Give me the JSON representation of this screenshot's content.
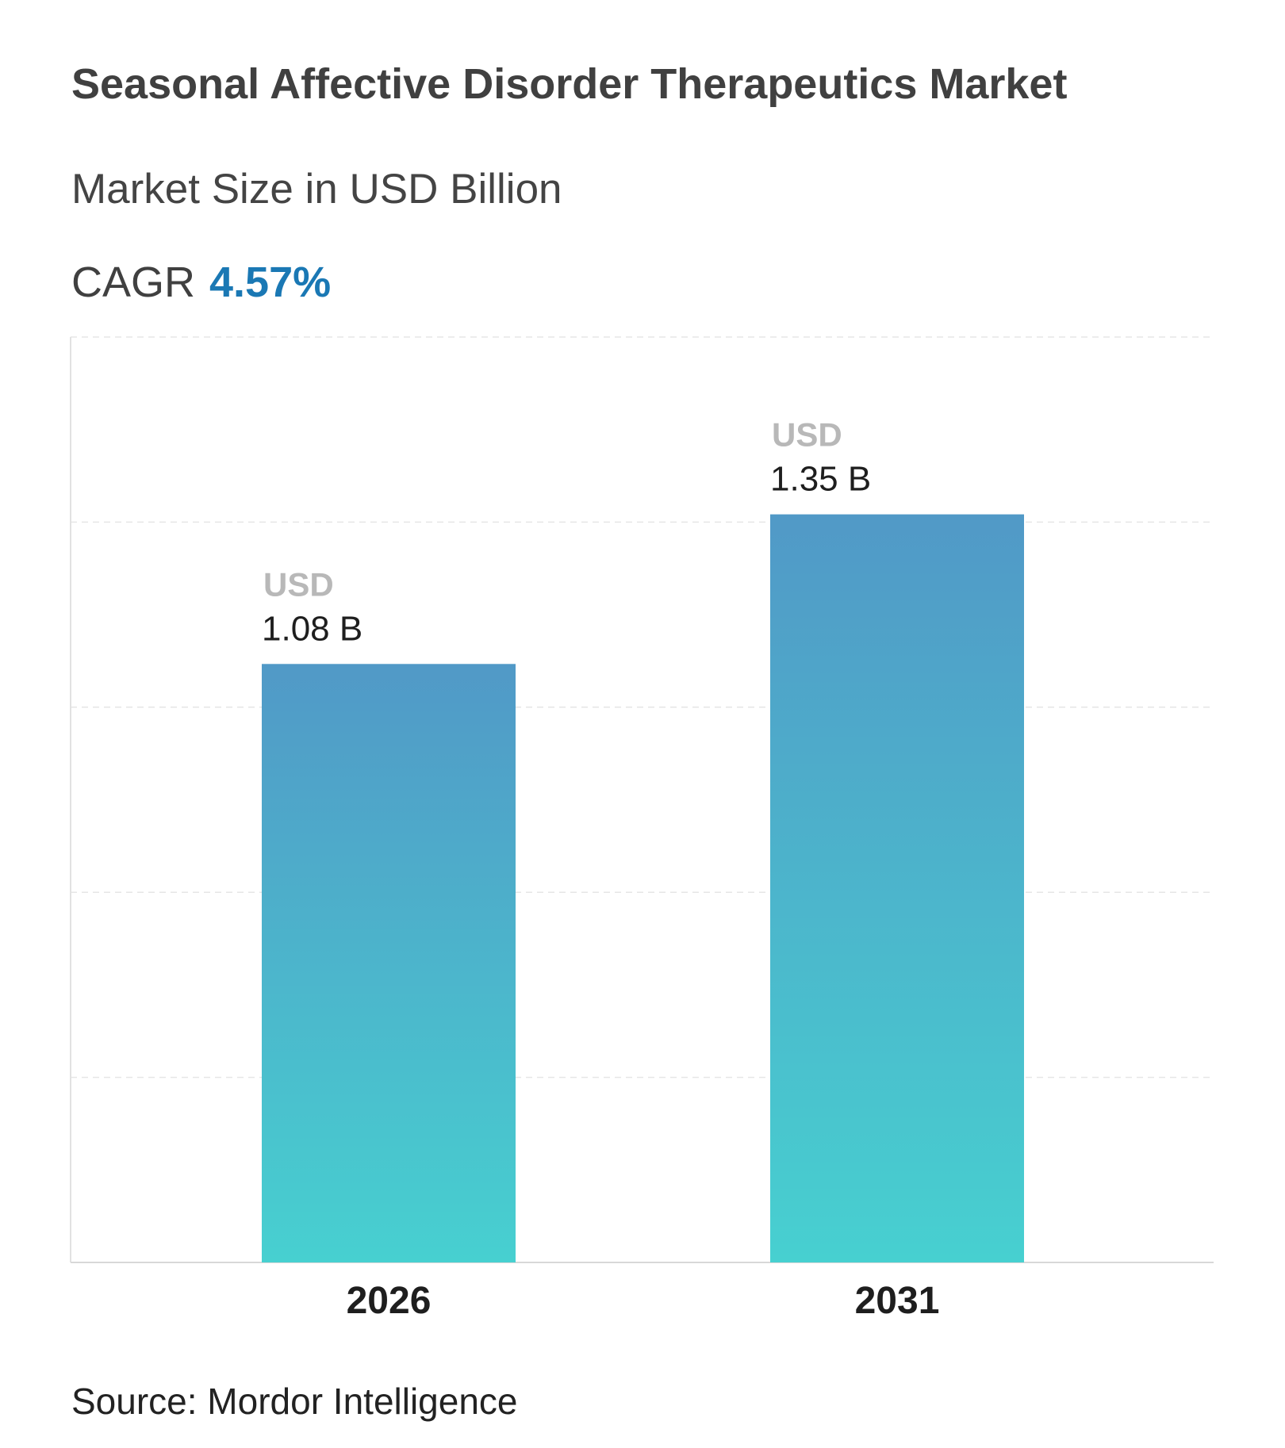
{
  "header": {
    "title": "Seasonal Affective Disorder Therapeutics Market",
    "subtitle": "Market Size in USD Billion",
    "cagr_label": "CAGR",
    "cagr_value": "4.57%"
  },
  "footer": {
    "source": "Source: Mordor Intelligence"
  },
  "colors": {
    "bar_top": "#5199c7",
    "bar_bottom": "#47d0d0",
    "cagr": "#1a78b4"
  },
  "chart_data": {
    "type": "bar",
    "categories": [
      "2026",
      "2031"
    ],
    "values": [
      1.08,
      1.35
    ],
    "data_labels": [
      {
        "unit": "USD",
        "value": "1.08 B"
      },
      {
        "unit": "USD",
        "value": "1.35 B"
      }
    ],
    "xlabel": "",
    "ylabel": "",
    "ylim": [
      0,
      1.67
    ],
    "grid": true,
    "legend": "none"
  }
}
